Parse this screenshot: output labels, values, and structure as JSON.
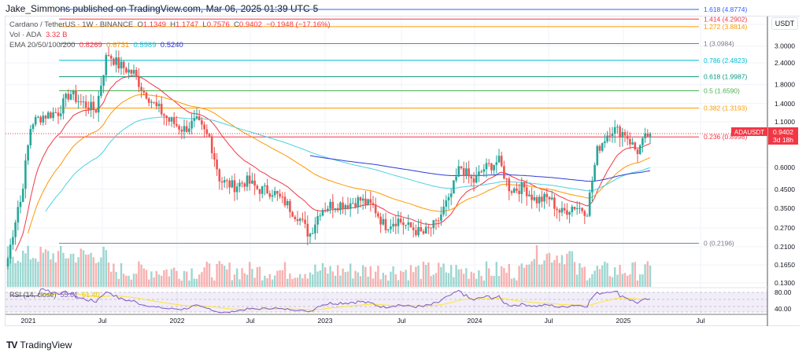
{
  "header": {
    "published": "Jake_Simmons published on TradingView.com, Mar 06, 2025 01:39 UTC-5"
  },
  "legend": {
    "symbol": "Cardano / TetherUS · 1W · BINANCE",
    "o_label": "O",
    "o": "1.1349",
    "h_label": "H",
    "h": "1.1747",
    "l_label": "L",
    "l": "0.7576",
    "c_label": "C",
    "c": "0.9402",
    "change": "−0.1948 (−17.16%)",
    "vol_label": "Vol · ADA",
    "vol": "3.32 B",
    "ema_label": "EMA 20/50/100/200",
    "ema20": "0.8269",
    "ema50": "0.6731",
    "ema100": "0.5989",
    "ema200": "0.5240"
  },
  "rsi": {
    "label": "RSI (14, close)",
    "value": "55.61",
    "ma": "61.40",
    "levels": [
      "80.00",
      "40.00"
    ]
  },
  "axis": {
    "currency": "USDT",
    "price_ticks": [
      "4.0000",
      "3.0000",
      "2.4000",
      "1.8000",
      "1.4000",
      "1.1000",
      "0.6000",
      "0.4500",
      "0.3500",
      "0.2700",
      "0.2100",
      "0.1650",
      "0.1300"
    ],
    "time_ticks": [
      "2021",
      "Jul",
      "2022",
      "Jul",
      "2023",
      "Jul",
      "2024",
      "Jul",
      "2025",
      "Jul"
    ]
  },
  "price_tag": {
    "symbol": "ADAUSDT",
    "price": "0.9402",
    "countdown": "3d 18h"
  },
  "fib": [
    {
      "label": "1.618 (4.8774)",
      "price": 4.8774,
      "color": "#2962ff"
    },
    {
      "label": "1.414 (4.2902)",
      "price": 4.2902,
      "color": "#f23645"
    },
    {
      "label": "1.272 (3.8814)",
      "price": 3.8814,
      "color": "#ff9800"
    },
    {
      "label": "1 (3.0984)",
      "price": 3.0984,
      "color": "#787b86"
    },
    {
      "label": "0.786 (2.4823)",
      "price": 2.4823,
      "color": "#00bcd4"
    },
    {
      "label": "0.618 (1.9987)",
      "price": 1.9987,
      "color": "#089981"
    },
    {
      "label": "0.5 (1.6590)",
      "price": 1.659,
      "color": "#4caf50"
    },
    {
      "label": "0.382 (1.3193)",
      "price": 1.3193,
      "color": "#ff9800"
    },
    {
      "label": "0.236 (0.8998)",
      "price": 0.8998,
      "color": "#f23645"
    },
    {
      "label": "0 (0.2196)",
      "price": 0.2196,
      "color": "#787b86"
    }
  ],
  "colors": {
    "up": "#26a69a",
    "down": "#ef5350",
    "ema20": "#f23645",
    "ema50": "#ff9800",
    "ema100": "#4dd0e1",
    "ema200": "#2e3bd6",
    "rsi": "#7e57c2",
    "rsima": "#ffe432"
  },
  "chart_data": {
    "type": "candlestick",
    "interval": "1W",
    "start": "2020-12",
    "monthly_closes": [
      0.18,
      0.38,
      1.1,
      1.2,
      1.25,
      1.6,
      1.4,
      1.3,
      2.7,
      2.3,
      2.1,
      1.6,
      1.3,
      1.1,
      1.0,
      1.1,
      0.9,
      0.5,
      0.47,
      0.5,
      0.45,
      0.44,
      0.38,
      0.32,
      0.25,
      0.35,
      0.37,
      0.37,
      0.39,
      0.36,
      0.28,
      0.3,
      0.27,
      0.25,
      0.28,
      0.38,
      0.6,
      0.5,
      0.6,
      0.65,
      0.45,
      0.46,
      0.39,
      0.4,
      0.33,
      0.36,
      0.34,
      0.8,
      1.0,
      0.95,
      0.75,
      0.94
    ]
  }
}
